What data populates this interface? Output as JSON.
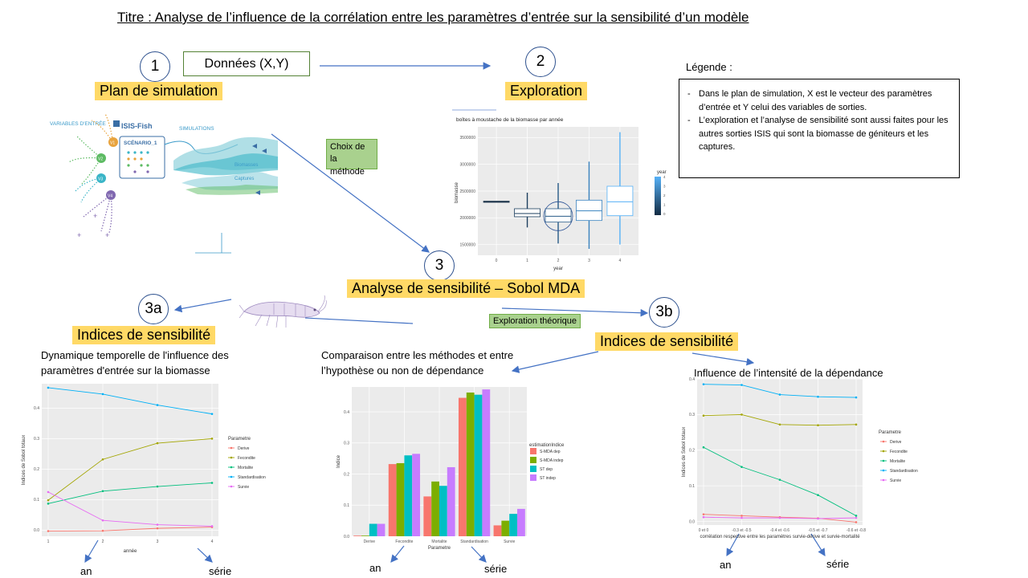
{
  "title": "Titre : Analyse de l’influence de la corrélation entre les paramètres d’entrée sur la sensibilité d’un modèle",
  "steps": {
    "s1": "1",
    "s2": "2",
    "s3": "3",
    "s3a": "3a",
    "s3b": "3b"
  },
  "labels": {
    "donnees": "Données (X,Y)",
    "plan": "Plan de simulation",
    "exploration": "Exploration",
    "choix": "Choix de la méthode",
    "analyse": "Analyse de sensibilité – Sobol MDA",
    "indices_a": "Indices de sensibilité",
    "indices_b": "Indices de sensibilité",
    "exploration_theorique": "Exploration théorique"
  },
  "legend": {
    "heading": "Légende :",
    "items": [
      "Dans le plan de simulation, X est le vecteur des paramètres d’entrée et Y celui des variables de sorties.",
      "L’exploration et l’analyse de sensibilité sont aussi faites pour les autres sorties ISIS qui sont la biomasse de géniteurs et les captures."
    ]
  },
  "isis": {
    "variables": "VARIABLES D'ENTRÉE",
    "brand": "ISIS-Fish",
    "scenario": "SCÉNARIO_1",
    "simulations": "SIMULATIONS",
    "biomasses": "Biomasses",
    "captures": "Captures",
    "v1": "V1",
    "v2": "V2",
    "v3": "V3",
    "v4": "V4"
  },
  "captions": {
    "left": "Dynamique temporelle de l'influence des paramètres d'entrée sur la biomasse",
    "middle": "Comparaison entre les méthodes et entre l’hypothèse ou non de dépendance",
    "right": "Influence de l’intensité de la dépendance"
  },
  "footers": {
    "left_an": "an",
    "left_serie": "série",
    "mid_an": "an",
    "mid_serie": "série",
    "right_an": "an",
    "right_serie": "série"
  },
  "colors": {
    "Derive": "#F8766D",
    "Fecondite": "#A3A500",
    "Mortalite": "#00BF7D",
    "Standardisation": "#00B0F6",
    "Survie": "#E76BF3",
    "highlight": "#FFD966",
    "arrow": "#4472C4"
  },
  "chart_data": [
    {
      "type": "box",
      "title": "boîtes à moustache de la biomasse par année",
      "xlabel": "year",
      "ylabel": "biomasse",
      "legend_title": "year",
      "categories": [
        "0",
        "1",
        "2",
        "3",
        "4"
      ],
      "ylim": [
        1300000,
        3700000
      ],
      "yticks": [
        "1500000",
        "2000000",
        "2500000",
        "3000000",
        "3500000"
      ],
      "legend_ticks": [
        "4",
        "3",
        "2",
        "1",
        "0"
      ],
      "boxes": [
        {
          "x": "0",
          "q1": 2290000,
          "median": 2300000,
          "q3": 2310000,
          "lo": 2290000,
          "hi": 2310000
        },
        {
          "x": "1",
          "q1": 2020000,
          "median": 2080000,
          "q3": 2170000,
          "lo": 1820000,
          "hi": 2470000
        },
        {
          "x": "2",
          "q1": 1920000,
          "median": 2030000,
          "q3": 2170000,
          "lo": 1520000,
          "hi": 2650000
        },
        {
          "x": "3",
          "q1": 1950000,
          "median": 2130000,
          "q3": 2330000,
          "lo": 1420000,
          "hi": 3050000
        },
        {
          "x": "4",
          "q1": 2040000,
          "median": 2300000,
          "q3": 2590000,
          "lo": 1500000,
          "hi": 3600000
        }
      ]
    },
    {
      "type": "line",
      "xlabel": "année",
      "ylabel": "Indices de Sobol totaux",
      "legend_title": "Parametre",
      "x": [
        1,
        2,
        3,
        4
      ],
      "xticks": [
        "1",
        "2",
        "3",
        "4"
      ],
      "yticks": [
        "0.0",
        "0.1",
        "0.2",
        "0.3",
        "0.4"
      ],
      "ylim": [
        -0.02,
        0.48
      ],
      "series": [
        {
          "name": "Derive",
          "values": [
            -0.003,
            -0.002,
            0.006,
            0.01
          ]
        },
        {
          "name": "Fecondite",
          "values": [
            0.098,
            0.232,
            0.285,
            0.3
          ]
        },
        {
          "name": "Mortalite",
          "values": [
            0.087,
            0.128,
            0.143,
            0.155
          ]
        },
        {
          "name": "Standardisation",
          "values": [
            0.467,
            0.446,
            0.41,
            0.381
          ]
        },
        {
          "name": "Survie",
          "values": [
            0.125,
            0.032,
            0.018,
            0.013
          ]
        }
      ]
    },
    {
      "type": "bar",
      "xlabel": "Parametre",
      "ylabel": "Indice",
      "legend_title": "estimationIndice",
      "categories": [
        "Derive",
        "Fecondite",
        "Mortalite",
        "Standardisation",
        "Survie"
      ],
      "yticks": [
        "0.0",
        "0.1",
        "0.2",
        "0.3",
        "0.4"
      ],
      "ylim": [
        0,
        0.48
      ],
      "series": [
        {
          "name": "S-MDA dep",
          "values": [
            0.002,
            0.232,
            0.128,
            0.445,
            0.035
          ]
        },
        {
          "name": "S-MDA indep",
          "values": [
            0.002,
            0.235,
            0.176,
            0.462,
            0.05
          ]
        },
        {
          "name": "ST dep",
          "values": [
            0.04,
            0.26,
            0.162,
            0.455,
            0.072
          ]
        },
        {
          "name": "ST indep",
          "values": [
            0.04,
            0.265,
            0.222,
            0.472,
            0.088
          ]
        }
      ],
      "series_colors": [
        "#F8766D",
        "#7CAE00",
        "#00BFC4",
        "#C77CFF"
      ]
    },
    {
      "type": "line",
      "xlabel": "corrélation respective entre les paramètres survie-dérive et survie-mortalité",
      "ylabel": "Indices de Sobol totaux",
      "legend_title": "Parametre",
      "categories": [
        "0 et 0",
        "-0.3 et -0.5",
        "-0.4 et -0.6",
        "-0.5 et -0.7",
        "-0.6 et -0.8"
      ],
      "yticks": [
        "0.0",
        "0.1",
        "0.2",
        "0.3",
        "0.4"
      ],
      "ylim": [
        -0.01,
        0.4
      ],
      "series": [
        {
          "name": "Derive",
          "values": [
            0.02,
            0.016,
            0.012,
            0.009,
            -0.002
          ]
        },
        {
          "name": "Fecondite",
          "values": [
            0.297,
            0.3,
            0.272,
            0.27,
            0.272
          ]
        },
        {
          "name": "Mortalite",
          "values": [
            0.208,
            0.153,
            0.117,
            0.074,
            0.016
          ]
        },
        {
          "name": "Standardisation",
          "values": [
            0.385,
            0.383,
            0.356,
            0.35,
            0.348
          ]
        },
        {
          "name": "Survie",
          "values": [
            0.012,
            0.01,
            0.01,
            0.008,
            0.01
          ]
        }
      ]
    }
  ]
}
